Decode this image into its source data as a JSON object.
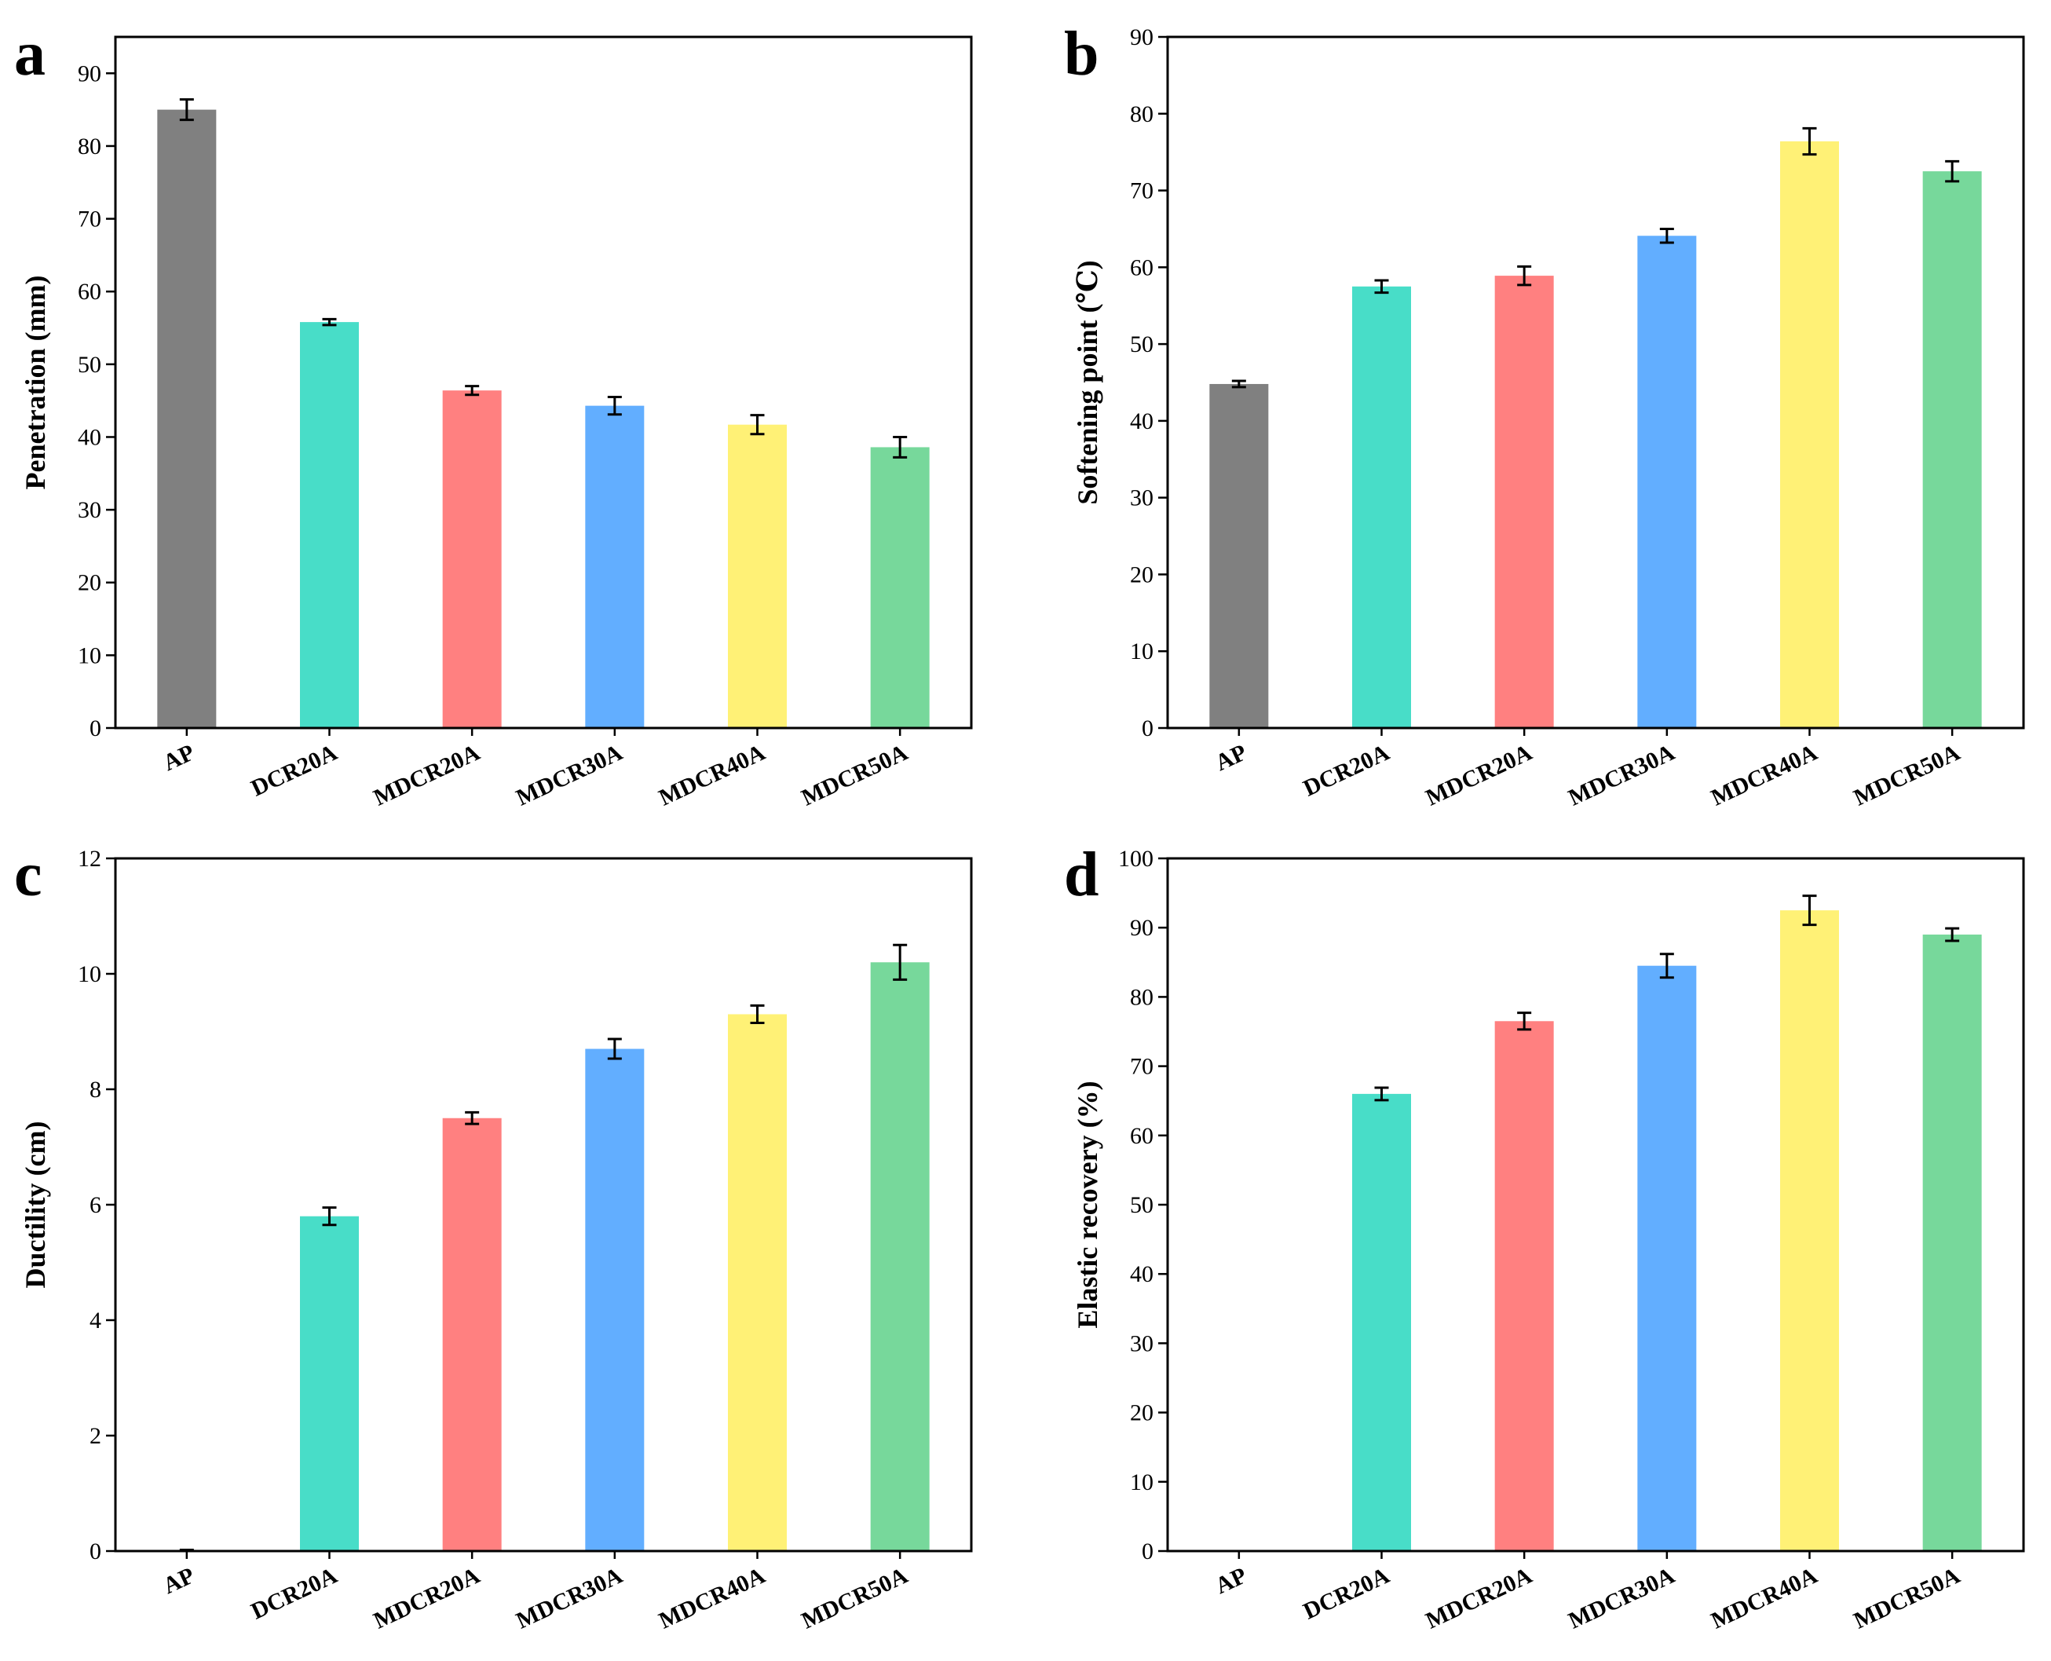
{
  "colors": {
    "AP": "#808080",
    "DCR20A": "#48DDC8",
    "MDCR20A": "#FF8080",
    "MDCR30A": "#62AEFF",
    "MDCR40A": "#FFF176",
    "MDCR50A": "#77D89B"
  },
  "chart_data": [
    {
      "panel": "a",
      "type": "bar",
      "ylabel": "Penetration (mm)",
      "xlabel": "",
      "ylim": [
        0,
        95
      ],
      "yticks": [
        0,
        10,
        20,
        30,
        40,
        50,
        60,
        70,
        80,
        90
      ],
      "categories": [
        "AP",
        "DCR20A",
        "MDCR20A",
        "MDCR30A",
        "MDCR40A",
        "MDCR50A"
      ],
      "values": [
        85.0,
        55.8,
        46.4,
        44.3,
        41.7,
        38.6
      ],
      "errors": [
        1.4,
        0.4,
        0.6,
        1.2,
        1.3,
        1.4
      ]
    },
    {
      "panel": "b",
      "type": "bar",
      "ylabel": "Softening point (℃)",
      "xlabel": "",
      "ylim": [
        0,
        90
      ],
      "yticks": [
        0,
        10,
        20,
        30,
        40,
        50,
        60,
        70,
        80,
        90
      ],
      "categories": [
        "AP",
        "DCR20A",
        "MDCR20A",
        "MDCR30A",
        "MDCR40A",
        "MDCR50A"
      ],
      "values": [
        44.8,
        57.5,
        58.9,
        64.1,
        76.4,
        72.5
      ],
      "errors": [
        0.4,
        0.8,
        1.2,
        0.9,
        1.7,
        1.3
      ]
    },
    {
      "panel": "c",
      "type": "bar",
      "ylabel": "Ductility (cm)",
      "xlabel": "",
      "ylim": [
        0,
        12
      ],
      "yticks": [
        0,
        2,
        4,
        6,
        8,
        10,
        12
      ],
      "categories": [
        "AP",
        "DCR20A",
        "MDCR20A",
        "MDCR30A",
        "MDCR40A",
        "MDCR50A"
      ],
      "values": [
        0.0,
        5.8,
        7.5,
        8.7,
        9.3,
        10.2
      ],
      "errors": [
        0.02,
        0.15,
        0.1,
        0.17,
        0.15,
        0.3
      ]
    },
    {
      "panel": "d",
      "type": "bar",
      "ylabel": "Elastic recovery (%)",
      "xlabel": "",
      "ylim": [
        0,
        100
      ],
      "yticks": [
        0,
        10,
        20,
        30,
        40,
        50,
        60,
        70,
        80,
        90,
        100
      ],
      "categories": [
        "AP",
        "DCR20A",
        "MDCR20A",
        "MDCR30A",
        "MDCR40A",
        "MDCR50A"
      ],
      "values": [
        0,
        66.0,
        76.5,
        84.5,
        92.5,
        89.0
      ],
      "errors": [
        0,
        0.9,
        1.2,
        1.7,
        2.1,
        0.9
      ]
    }
  ]
}
